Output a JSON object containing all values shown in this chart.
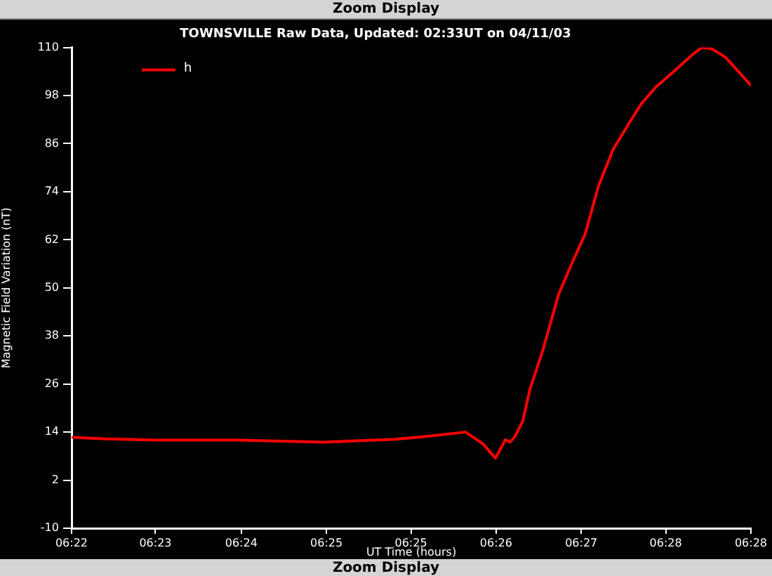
{
  "chart_data": {
    "type": "line",
    "title": "TOWNSVILLE Raw Data, Updated: 02:33UT on 04/11/03",
    "xlabel": "UT Time (hours)",
    "ylabel": "Magnetic Field Variation (nT)",
    "annotations": [
      "Zoom Display",
      "Zoom Display"
    ],
    "x": [
      6.3712,
      6.3763,
      6.3837,
      6.3963,
      6.409,
      6.4196,
      6.4238,
      6.4304,
      6.433,
      6.4349,
      6.4364,
      6.4371,
      6.4378,
      6.439,
      6.4401,
      6.442,
      6.4444,
      6.4462,
      6.4484,
      6.4504,
      6.4526,
      6.4548,
      6.4568,
      6.459,
      6.4617,
      6.4645,
      6.4659,
      6.4675,
      6.4695,
      6.4716,
      6.4733
    ],
    "series": [
      {
        "name": "h",
        "color": "#ff0000",
        "values": [
          12.7,
          12.3,
          12,
          12,
          11.5,
          12.2,
          12.8,
          14,
          11.1,
          7.5,
          12.1,
          11.5,
          12.8,
          16.7,
          24.8,
          34.3,
          48.4,
          55.4,
          63.5,
          75.5,
          84.6,
          90.6,
          95.9,
          100.1,
          104,
          108.2,
          110,
          109.6,
          107.5,
          103.7,
          100.5
        ]
      }
    ],
    "xlim": [
      6.3712,
      6.4733
    ],
    "xticks": [
      {
        "value": 6.3712,
        "label": "06:22"
      },
      {
        "value": 6.3838,
        "label": "06:23"
      },
      {
        "value": 6.3967,
        "label": "06:24"
      },
      {
        "value": 6.4095,
        "label": "06:25"
      },
      {
        "value": 6.4222,
        "label": "06:25"
      },
      {
        "value": 6.435,
        "label": "06:26"
      },
      {
        "value": 6.4478,
        "label": "06:27"
      },
      {
        "value": 6.4605,
        "label": "06:28"
      },
      {
        "value": 6.4733,
        "label": "06:28"
      }
    ],
    "ylim": [
      -10,
      110
    ],
    "yticks": [
      -10,
      2,
      14,
      26,
      38,
      50,
      62,
      74,
      86,
      98,
      110
    ],
    "grid": false,
    "legend": "top left",
    "marker": "none",
    "line_style": "solid"
  }
}
